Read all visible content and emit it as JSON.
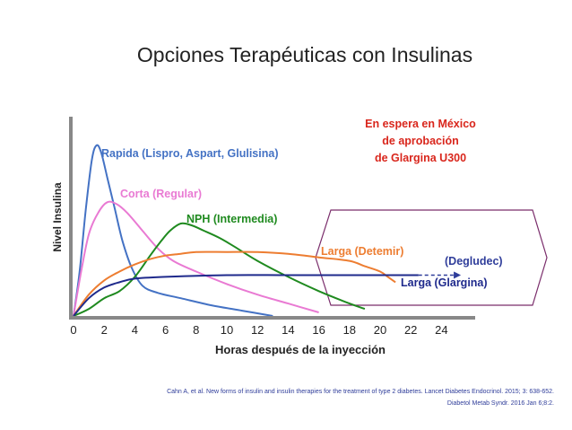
{
  "title": "Opciones Terapéuticas con Insulinas",
  "note": [
    "En espera en México",
    "de aprobación",
    "de Glargina U300"
  ],
  "citation": {
    "line1": "Cahn A, et al. New forms of insulin and insulin therapies for the treatment of type 2 diabetes. Lancet Diabetes Endocrinol. 2015; 3: 638-652.",
    "line2": "Diabetol Metab Syndr. 2016 Jan 6;8:2."
  },
  "colors": {
    "rapid": "#4472c4",
    "short": "#e97ad3",
    "nph": "#1f8a1f",
    "detemir": "#ed7d31",
    "glargine": "#1f2a8c",
    "degludec": "#2f3d9a",
    "note": "#d9261c",
    "hexagon_border": "#7a2d6b"
  },
  "chart_data": {
    "type": "line",
    "xlabel": "Horas después de la inyección",
    "ylabel": "Nivel Insulina",
    "xlim": [
      0,
      26
    ],
    "ylim": [
      0,
      100
    ],
    "xticks": [
      0,
      2,
      4,
      6,
      8,
      10,
      12,
      14,
      16,
      18,
      20,
      22,
      24
    ],
    "grid": false,
    "series": [
      {
        "key": "rapid",
        "name": "Rapida (Lispro, Aspart, Glulisina)",
        "points": [
          [
            0,
            0
          ],
          [
            0.4,
            25
          ],
          [
            0.8,
            60
          ],
          [
            1.2,
            88
          ],
          [
            1.5,
            96
          ],
          [
            1.8,
            92
          ],
          [
            2.2,
            78
          ],
          [
            2.7,
            60
          ],
          [
            3.2,
            42
          ],
          [
            3.8,
            27
          ],
          [
            4.5,
            17
          ],
          [
            5.5,
            13
          ],
          [
            7,
            10
          ],
          [
            9,
            6
          ],
          [
            11,
            3
          ],
          [
            13,
            0
          ]
        ]
      },
      {
        "key": "short",
        "name": "Corta (Regular)",
        "points": [
          [
            0,
            0
          ],
          [
            0.5,
            25
          ],
          [
            1,
            46
          ],
          [
            1.6,
            58
          ],
          [
            2.2,
            64
          ],
          [
            2.8,
            63
          ],
          [
            3.5,
            58
          ],
          [
            4.5,
            48
          ],
          [
            5.5,
            38
          ],
          [
            6.5,
            31
          ],
          [
            8,
            25
          ],
          [
            10,
            18
          ],
          [
            12,
            12
          ],
          [
            14,
            7
          ],
          [
            16,
            2
          ]
        ]
      },
      {
        "key": "nph",
        "name": "NPH (Intermedia)",
        "points": [
          [
            0,
            0
          ],
          [
            1,
            4
          ],
          [
            2,
            10
          ],
          [
            3,
            14
          ],
          [
            4,
            22
          ],
          [
            5,
            34
          ],
          [
            5.7,
            42
          ],
          [
            6.3,
            48
          ],
          [
            7,
            52
          ],
          [
            7.7,
            51
          ],
          [
            8.5,
            48
          ],
          [
            9.5,
            44
          ],
          [
            10.5,
            39
          ],
          [
            12,
            31
          ],
          [
            14,
            22
          ],
          [
            16,
            14
          ],
          [
            18,
            7
          ],
          [
            19,
            4
          ]
        ]
      },
      {
        "key": "detemir",
        "name": "Larga (Detemir)",
        "points": [
          [
            0,
            0
          ],
          [
            1,
            12
          ],
          [
            2,
            20
          ],
          [
            3,
            25
          ],
          [
            4,
            29
          ],
          [
            5,
            32
          ],
          [
            6,
            34
          ],
          [
            7,
            35
          ],
          [
            8,
            36
          ],
          [
            10,
            36
          ],
          [
            12,
            36
          ],
          [
            14,
            35
          ],
          [
            16,
            33
          ],
          [
            18,
            31
          ],
          [
            19,
            28
          ],
          [
            20,
            25
          ],
          [
            20.5,
            22
          ],
          [
            21,
            19
          ]
        ]
      },
      {
        "key": "glargine",
        "name": "Larga (Glargina)",
        "points": [
          [
            0,
            0
          ],
          [
            1,
            10
          ],
          [
            2,
            16
          ],
          [
            3,
            19
          ],
          [
            4,
            21
          ],
          [
            6,
            22
          ],
          [
            10,
            23
          ],
          [
            14,
            23
          ],
          [
            18,
            23
          ],
          [
            20,
            23
          ],
          [
            22.5,
            23
          ]
        ]
      },
      {
        "key": "degludec",
        "name": "(Degludec)",
        "points": [
          [
            22.5,
            23
          ],
          [
            24.8,
            23
          ]
        ]
      }
    ]
  }
}
